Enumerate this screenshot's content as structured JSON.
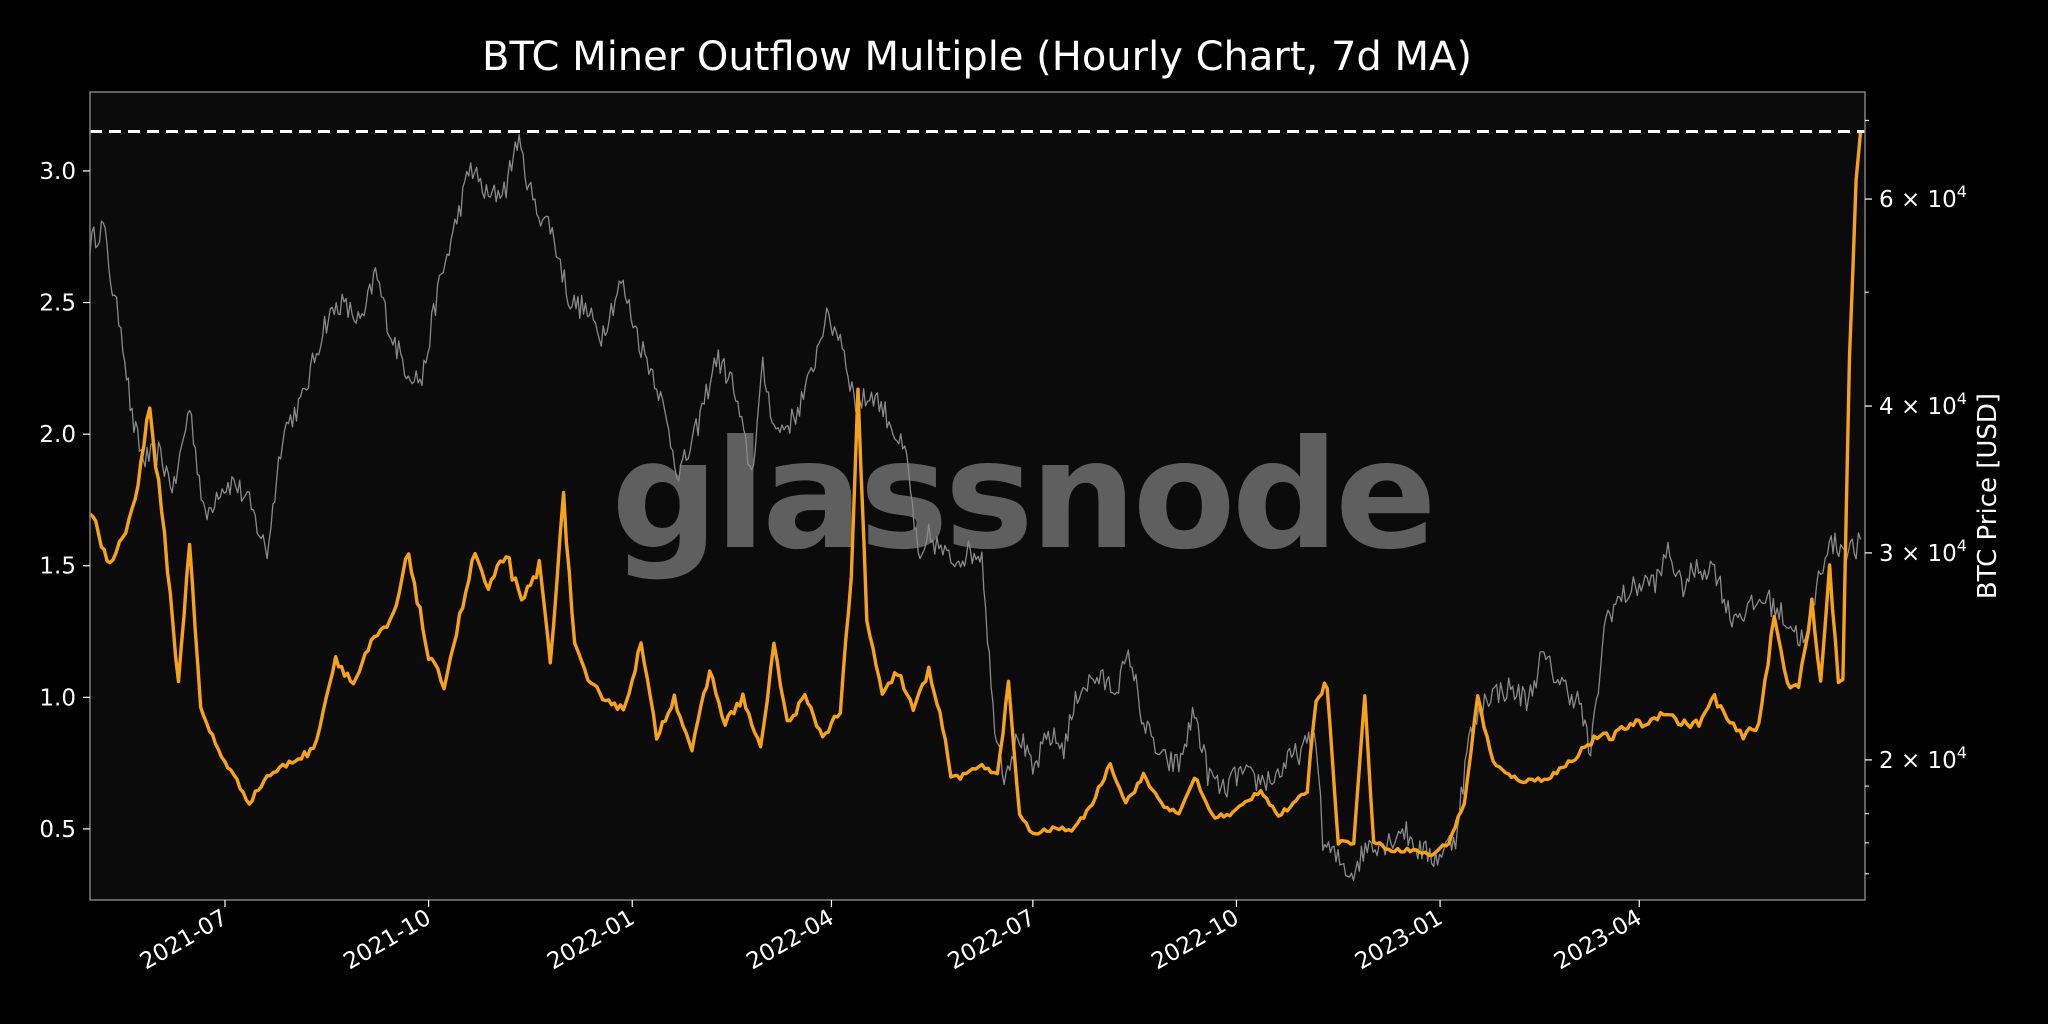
{
  "chart_data": {
    "type": "line",
    "title": "BTC Miner Outflow Multiple (Hourly Chart, 7d MA)",
    "watermark": "glassnode",
    "xlabel": "",
    "ylabel_left": "",
    "ylabel_right": "BTC Price [USD]",
    "x_range": [
      "2021-05-01",
      "2023-07-12"
    ],
    "x_ticks": [
      "2021-07",
      "2021-10",
      "2022-01",
      "2022-04",
      "2022-07",
      "2022-10",
      "2023-01",
      "2023-04"
    ],
    "y_left_range": [
      0.23,
      3.3
    ],
    "y_left_ticks": [
      0.5,
      1.0,
      1.5,
      2.0,
      2.5,
      3.0
    ],
    "y_right_scale": "log",
    "y_right_range": [
      15200,
      74000
    ],
    "y_right_ticks": [
      {
        "value": 20000,
        "mantissa": "2",
        "base": "10",
        "exponent": "4"
      },
      {
        "value": 30000,
        "mantissa": "3",
        "base": "10",
        "exponent": "4"
      },
      {
        "value": 40000,
        "mantissa": "4",
        "base": "10",
        "exponent": "4"
      },
      {
        "value": 60000,
        "mantissa": "6",
        "base": "10",
        "exponent": "4"
      }
    ],
    "times_symbol": "×",
    "reference_line": {
      "value": 3.15,
      "style": "dashed",
      "color": "#ffffff"
    },
    "grid": false,
    "legend": "none",
    "colors": {
      "background": "#000000",
      "plot_background": "#0b0b0b",
      "frame": "#7f7f7f",
      "outflow": "#f7a21b",
      "price": "#8a8a8a"
    },
    "series": [
      {
        "axis": "left",
        "color": "#f7a21b",
        "points": [
          [
            "2021-05-01",
            1.7
          ],
          [
            "2021-05-10",
            1.5
          ],
          [
            "2021-05-20",
            1.7
          ],
          [
            "2021-05-28",
            2.1
          ],
          [
            "2021-06-05",
            1.5
          ],
          [
            "2021-06-10",
            1.05
          ],
          [
            "2021-06-15",
            1.6
          ],
          [
            "2021-06-20",
            0.95
          ],
          [
            "2021-06-28",
            0.8
          ],
          [
            "2021-07-05",
            0.7
          ],
          [
            "2021-07-12",
            0.6
          ],
          [
            "2021-07-20",
            0.7
          ],
          [
            "2021-07-30",
            0.75
          ],
          [
            "2021-08-10",
            0.8
          ],
          [
            "2021-08-20",
            1.15
          ],
          [
            "2021-08-28",
            1.05
          ],
          [
            "2021-09-05",
            1.2
          ],
          [
            "2021-09-15",
            1.3
          ],
          [
            "2021-09-22",
            1.55
          ],
          [
            "2021-10-01",
            1.15
          ],
          [
            "2021-10-08",
            1.05
          ],
          [
            "2021-10-15",
            1.3
          ],
          [
            "2021-10-22",
            1.55
          ],
          [
            "2021-10-28",
            1.4
          ],
          [
            "2021-11-05",
            1.55
          ],
          [
            "2021-11-12",
            1.35
          ],
          [
            "2021-11-20",
            1.5
          ],
          [
            "2021-11-25",
            1.15
          ],
          [
            "2021-12-01",
            1.75
          ],
          [
            "2021-12-06",
            1.2
          ],
          [
            "2021-12-12",
            1.05
          ],
          [
            "2021-12-20",
            1.0
          ],
          [
            "2021-12-28",
            0.95
          ],
          [
            "2022-01-05",
            1.2
          ],
          [
            "2022-01-12",
            0.85
          ],
          [
            "2022-01-20",
            1.0
          ],
          [
            "2022-01-28",
            0.8
          ],
          [
            "2022-02-05",
            1.1
          ],
          [
            "2022-02-12",
            0.9
          ],
          [
            "2022-02-20",
            1.0
          ],
          [
            "2022-02-28",
            0.8
          ],
          [
            "2022-03-06",
            1.2
          ],
          [
            "2022-03-12",
            0.9
          ],
          [
            "2022-03-20",
            1.0
          ],
          [
            "2022-03-28",
            0.85
          ],
          [
            "2022-04-05",
            0.95
          ],
          [
            "2022-04-10",
            1.45
          ],
          [
            "2022-04-13",
            2.15
          ],
          [
            "2022-04-17",
            1.3
          ],
          [
            "2022-04-24",
            1.0
          ],
          [
            "2022-05-01",
            1.1
          ],
          [
            "2022-05-08",
            0.95
          ],
          [
            "2022-05-15",
            1.1
          ],
          [
            "2022-05-20",
            0.95
          ],
          [
            "2022-05-25",
            0.7
          ],
          [
            "2022-06-01",
            0.7
          ],
          [
            "2022-06-08",
            0.75
          ],
          [
            "2022-06-15",
            0.7
          ],
          [
            "2022-06-20",
            1.05
          ],
          [
            "2022-06-25",
            0.55
          ],
          [
            "2022-07-01",
            0.48
          ],
          [
            "2022-07-10",
            0.5
          ],
          [
            "2022-07-20",
            0.5
          ],
          [
            "2022-07-28",
            0.6
          ],
          [
            "2022-08-05",
            0.75
          ],
          [
            "2022-08-12",
            0.6
          ],
          [
            "2022-08-20",
            0.7
          ],
          [
            "2022-08-28",
            0.6
          ],
          [
            "2022-09-05",
            0.55
          ],
          [
            "2022-09-12",
            0.7
          ],
          [
            "2022-09-20",
            0.55
          ],
          [
            "2022-09-28",
            0.55
          ],
          [
            "2022-10-05",
            0.6
          ],
          [
            "2022-10-12",
            0.65
          ],
          [
            "2022-10-20",
            0.55
          ],
          [
            "2022-10-28",
            0.6
          ],
          [
            "2022-11-02",
            0.65
          ],
          [
            "2022-11-06",
            1.0
          ],
          [
            "2022-11-11",
            1.05
          ],
          [
            "2022-11-16",
            0.45
          ],
          [
            "2022-11-23",
            0.45
          ],
          [
            "2022-11-28",
            1.0
          ],
          [
            "2022-12-02",
            0.45
          ],
          [
            "2022-12-10",
            0.42
          ],
          [
            "2022-12-20",
            0.42
          ],
          [
            "2022-12-28",
            0.4
          ],
          [
            "2023-01-05",
            0.45
          ],
          [
            "2023-01-12",
            0.6
          ],
          [
            "2023-01-18",
            1.0
          ],
          [
            "2023-01-25",
            0.75
          ],
          [
            "2023-02-01",
            0.7
          ],
          [
            "2023-02-10",
            0.68
          ],
          [
            "2023-02-20",
            0.7
          ],
          [
            "2023-02-28",
            0.75
          ],
          [
            "2023-03-06",
            0.8
          ],
          [
            "2023-03-13",
            0.85
          ],
          [
            "2023-03-20",
            0.85
          ],
          [
            "2023-03-28",
            0.9
          ],
          [
            "2023-04-05",
            0.9
          ],
          [
            "2023-04-12",
            0.95
          ],
          [
            "2023-04-20",
            0.9
          ],
          [
            "2023-04-28",
            0.9
          ],
          [
            "2023-05-05",
            1.0
          ],
          [
            "2023-05-12",
            0.9
          ],
          [
            "2023-05-18",
            0.85
          ],
          [
            "2023-05-25",
            0.9
          ],
          [
            "2023-06-01",
            1.3
          ],
          [
            "2023-06-07",
            1.05
          ],
          [
            "2023-06-12",
            1.05
          ],
          [
            "2023-06-18",
            1.35
          ],
          [
            "2023-06-22",
            1.05
          ],
          [
            "2023-06-26",
            1.5
          ],
          [
            "2023-06-30",
            1.05
          ],
          [
            "2023-07-02",
            1.05
          ],
          [
            "2023-07-05",
            2.3
          ],
          [
            "2023-07-08",
            3.0
          ],
          [
            "2023-07-10",
            3.15
          ]
        ]
      },
      {
        "axis": "right",
        "color": "#8a8a8a",
        "points": [
          [
            "2021-05-01",
            55000
          ],
          [
            "2021-05-07",
            57000
          ],
          [
            "2021-05-12",
            49000
          ],
          [
            "2021-05-15",
            47000
          ],
          [
            "2021-05-20",
            39000
          ],
          [
            "2021-05-25",
            36000
          ],
          [
            "2021-06-01",
            36500
          ],
          [
            "2021-06-08",
            34000
          ],
          [
            "2021-06-15",
            40000
          ],
          [
            "2021-06-22",
            32000
          ],
          [
            "2021-06-28",
            34000
          ],
          [
            "2021-07-05",
            34500
          ],
          [
            "2021-07-12",
            33000
          ],
          [
            "2021-07-20",
            30000
          ],
          [
            "2021-07-27",
            38000
          ],
          [
            "2021-08-05",
            40500
          ],
          [
            "2021-08-15",
            47000
          ],
          [
            "2021-08-22",
            49000
          ],
          [
            "2021-09-01",
            47000
          ],
          [
            "2021-09-07",
            52000
          ],
          [
            "2021-09-14",
            46000
          ],
          [
            "2021-09-21",
            43000
          ],
          [
            "2021-09-28",
            42000
          ],
          [
            "2021-10-05",
            50000
          ],
          [
            "2021-10-12",
            56000
          ],
          [
            "2021-10-20",
            64000
          ],
          [
            "2021-10-28",
            60000
          ],
          [
            "2021-11-05",
            61500
          ],
          [
            "2021-11-10",
            67500
          ],
          [
            "2021-11-18",
            59000
          ],
          [
            "2021-11-25",
            57000
          ],
          [
            "2021-12-04",
            49000
          ],
          [
            "2021-12-10",
            48500
          ],
          [
            "2021-12-18",
            46000
          ],
          [
            "2021-12-27",
            51000
          ],
          [
            "2022-01-05",
            45000
          ],
          [
            "2022-01-12",
            42000
          ],
          [
            "2022-01-22",
            35000
          ],
          [
            "2022-01-28",
            37000
          ],
          [
            "2022-02-08",
            44000
          ],
          [
            "2022-02-15",
            42000
          ],
          [
            "2022-02-24",
            35000
          ],
          [
            "2022-03-01",
            43000
          ],
          [
            "2022-03-07",
            38000
          ],
          [
            "2022-03-15",
            39000
          ],
          [
            "2022-03-22",
            42000
          ],
          [
            "2022-03-29",
            47500
          ],
          [
            "2022-04-05",
            46000
          ],
          [
            "2022-04-12",
            40000
          ],
          [
            "2022-04-20",
            41000
          ],
          [
            "2022-04-27",
            39000
          ],
          [
            "2022-05-05",
            36000
          ],
          [
            "2022-05-11",
            29000
          ],
          [
            "2022-05-15",
            31000
          ],
          [
            "2022-05-25",
            29500
          ],
          [
            "2022-06-01",
            30000
          ],
          [
            "2022-06-08",
            30000
          ],
          [
            "2022-06-13",
            22000
          ],
          [
            "2022-06-18",
            19500
          ],
          [
            "2022-06-25",
            21000
          ],
          [
            "2022-07-01",
            19500
          ],
          [
            "2022-07-08",
            21000
          ],
          [
            "2022-07-15",
            20500
          ],
          [
            "2022-07-22",
            23000
          ],
          [
            "2022-07-30",
            23500
          ],
          [
            "2022-08-07",
            23000
          ],
          [
            "2022-08-14",
            24500
          ],
          [
            "2022-08-20",
            21500
          ],
          [
            "2022-08-28",
            20000
          ],
          [
            "2022-09-05",
            19800
          ],
          [
            "2022-09-12",
            22000
          ],
          [
            "2022-09-18",
            19500
          ],
          [
            "2022-09-25",
            18800
          ],
          [
            "2022-10-02",
            19500
          ],
          [
            "2022-10-10",
            19200
          ],
          [
            "2022-10-18",
            19300
          ],
          [
            "2022-10-25",
            20000
          ],
          [
            "2022-11-01",
            20500
          ],
          [
            "2022-11-06",
            21000
          ],
          [
            "2022-11-09",
            17000
          ],
          [
            "2022-11-15",
            16500
          ],
          [
            "2022-11-22",
            16000
          ],
          [
            "2022-11-30",
            17000
          ],
          [
            "2022-12-08",
            17000
          ],
          [
            "2022-12-15",
            17500
          ],
          [
            "2022-12-22",
            16800
          ],
          [
            "2022-12-30",
            16500
          ],
          [
            "2023-01-08",
            17200
          ],
          [
            "2023-01-14",
            20800
          ],
          [
            "2023-01-22",
            22700
          ],
          [
            "2023-02-01",
            23000
          ],
          [
            "2023-02-10",
            22500
          ],
          [
            "2023-02-16",
            24500
          ],
          [
            "2023-02-25",
            23200
          ],
          [
            "2023-03-05",
            22400
          ],
          [
            "2023-03-10",
            20200
          ],
          [
            "2023-03-17",
            26500
          ],
          [
            "2023-03-24",
            27500
          ],
          [
            "2023-04-01",
            28200
          ],
          [
            "2023-04-10",
            28500
          ],
          [
            "2023-04-14",
            30300
          ],
          [
            "2023-04-20",
            28000
          ],
          [
            "2023-04-26",
            29000
          ],
          [
            "2023-05-05",
            29200
          ],
          [
            "2023-05-12",
            26500
          ],
          [
            "2023-05-20",
            26800
          ],
          [
            "2023-05-28",
            27500
          ],
          [
            "2023-06-05",
            26500
          ],
          [
            "2023-06-10",
            25800
          ],
          [
            "2023-06-15",
            25100
          ],
          [
            "2023-06-21",
            28500
          ],
          [
            "2023-06-25",
            30500
          ],
          [
            "2023-07-01",
            30400
          ],
          [
            "2023-07-08",
            30200
          ],
          [
            "2023-07-10",
            30800
          ]
        ]
      }
    ]
  }
}
